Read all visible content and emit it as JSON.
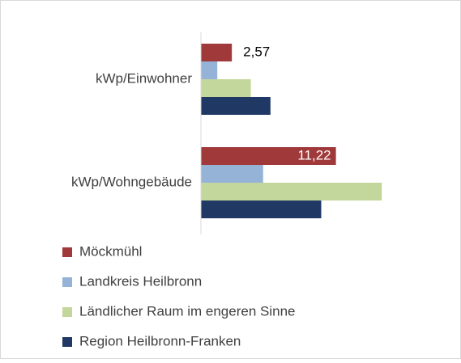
{
  "chart_data": {
    "type": "hbar",
    "categories": [
      "kWp/Einwohner",
      "kWp/Wohngebäude"
    ],
    "series": [
      {
        "name": "Möckmühl",
        "color": "#a0393a",
        "values": [
          2.57,
          11.22
        ],
        "value_labels": [
          "2,57",
          "11,22"
        ]
      },
      {
        "name": "Landkreis Heilbronn",
        "color": "#95b3d7",
        "values": [
          1.36,
          5.17
        ]
      },
      {
        "name": "Ländlicher Raum im engeren Sinne",
        "color": "#c3d69b",
        "values": [
          4.15,
          15.03
        ]
      },
      {
        "name": "Region Heilbronn-Franken",
        "color": "#1f3864",
        "values": [
          5.78,
          10.0
        ]
      }
    ],
    "xlim": [
      0,
      20
    ],
    "legend": "bottom"
  }
}
